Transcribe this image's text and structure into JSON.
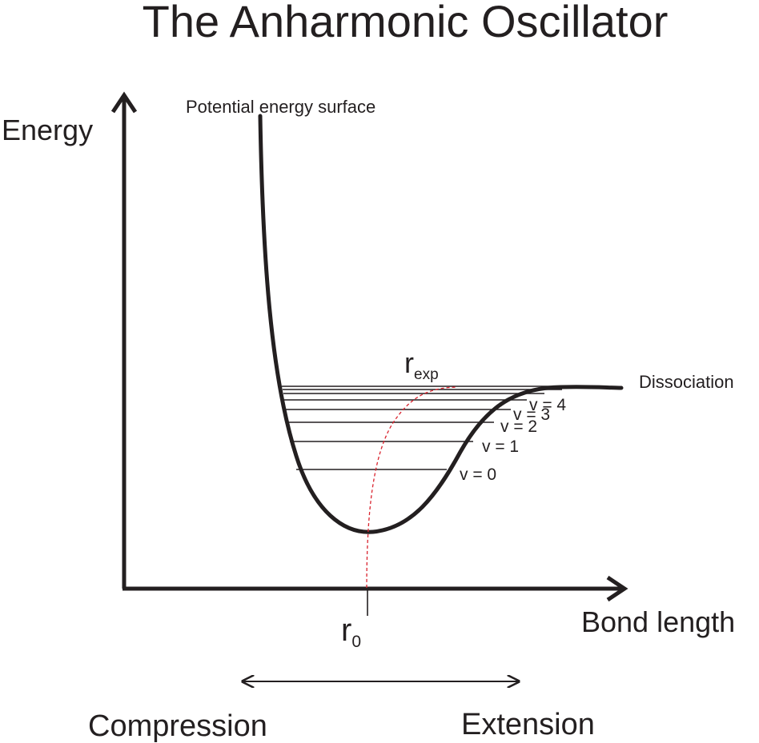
{
  "title": "The Anharmonic Oscillator",
  "axes": {
    "y_label": "Energy",
    "x_label": "Bond length"
  },
  "labels": {
    "potential_curve": "Potential energy surface",
    "dissociation": "Dissociation",
    "r_exp_base": "r",
    "r_exp_sub": "exp",
    "r0_base": "r",
    "r0_sub": "0",
    "compression": "Compression",
    "extension": "Extension"
  },
  "levels": [
    {
      "label": "v = 0"
    },
    {
      "label": "v = 1"
    },
    {
      "label": "v = 2"
    },
    {
      "label": "v = 3"
    },
    {
      "label": "v = 4"
    }
  ],
  "colors": {
    "ink": "#231f20",
    "expectation_path": "#d9232e"
  }
}
